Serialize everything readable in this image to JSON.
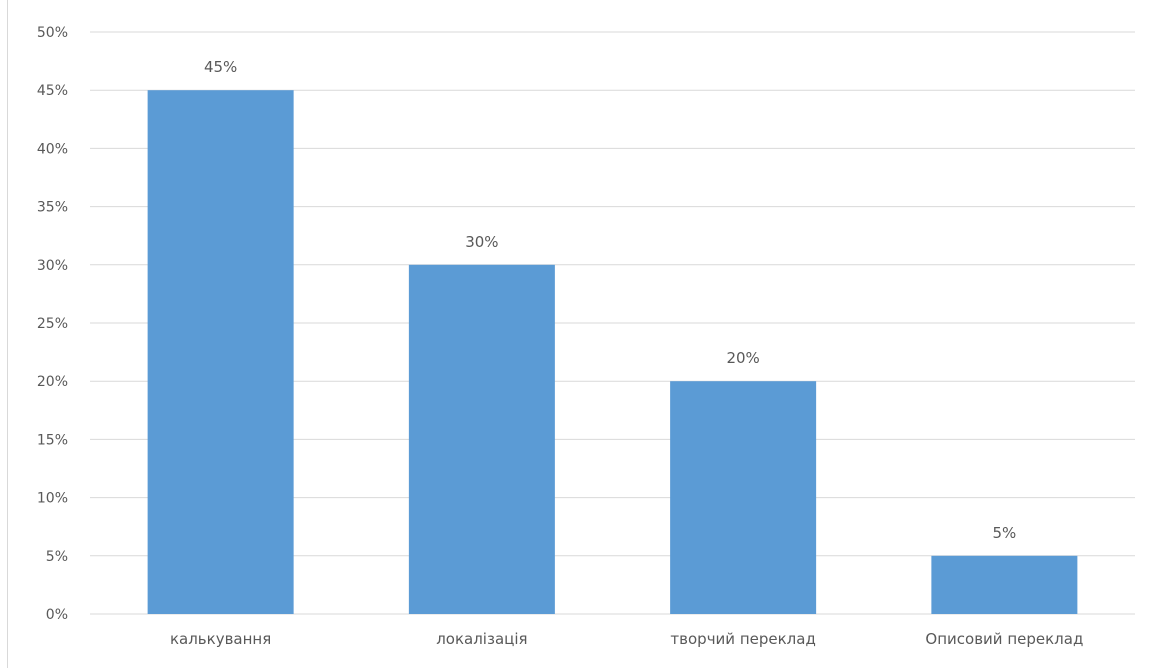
{
  "chart_data": {
    "type": "bar",
    "categories": [
      "калькування",
      "локалізація",
      "творчий переклад",
      "Описовий переклад"
    ],
    "values": [
      45,
      30,
      20,
      5
    ],
    "data_labels": [
      "45%",
      "30%",
      "20%",
      "5%"
    ],
    "y_ticks": [
      "0%",
      "5%",
      "10%",
      "15%",
      "20%",
      "25%",
      "30%",
      "35%",
      "40%",
      "45%",
      "50%"
    ],
    "ylim": [
      0,
      50
    ],
    "y_unit": "%",
    "title": "",
    "xlabel": "",
    "ylabel": "",
    "grid": true,
    "legend": "none",
    "colors": {
      "bar": "#5b9bd5",
      "grid": "#d9d9d9",
      "text": "#595959"
    }
  }
}
